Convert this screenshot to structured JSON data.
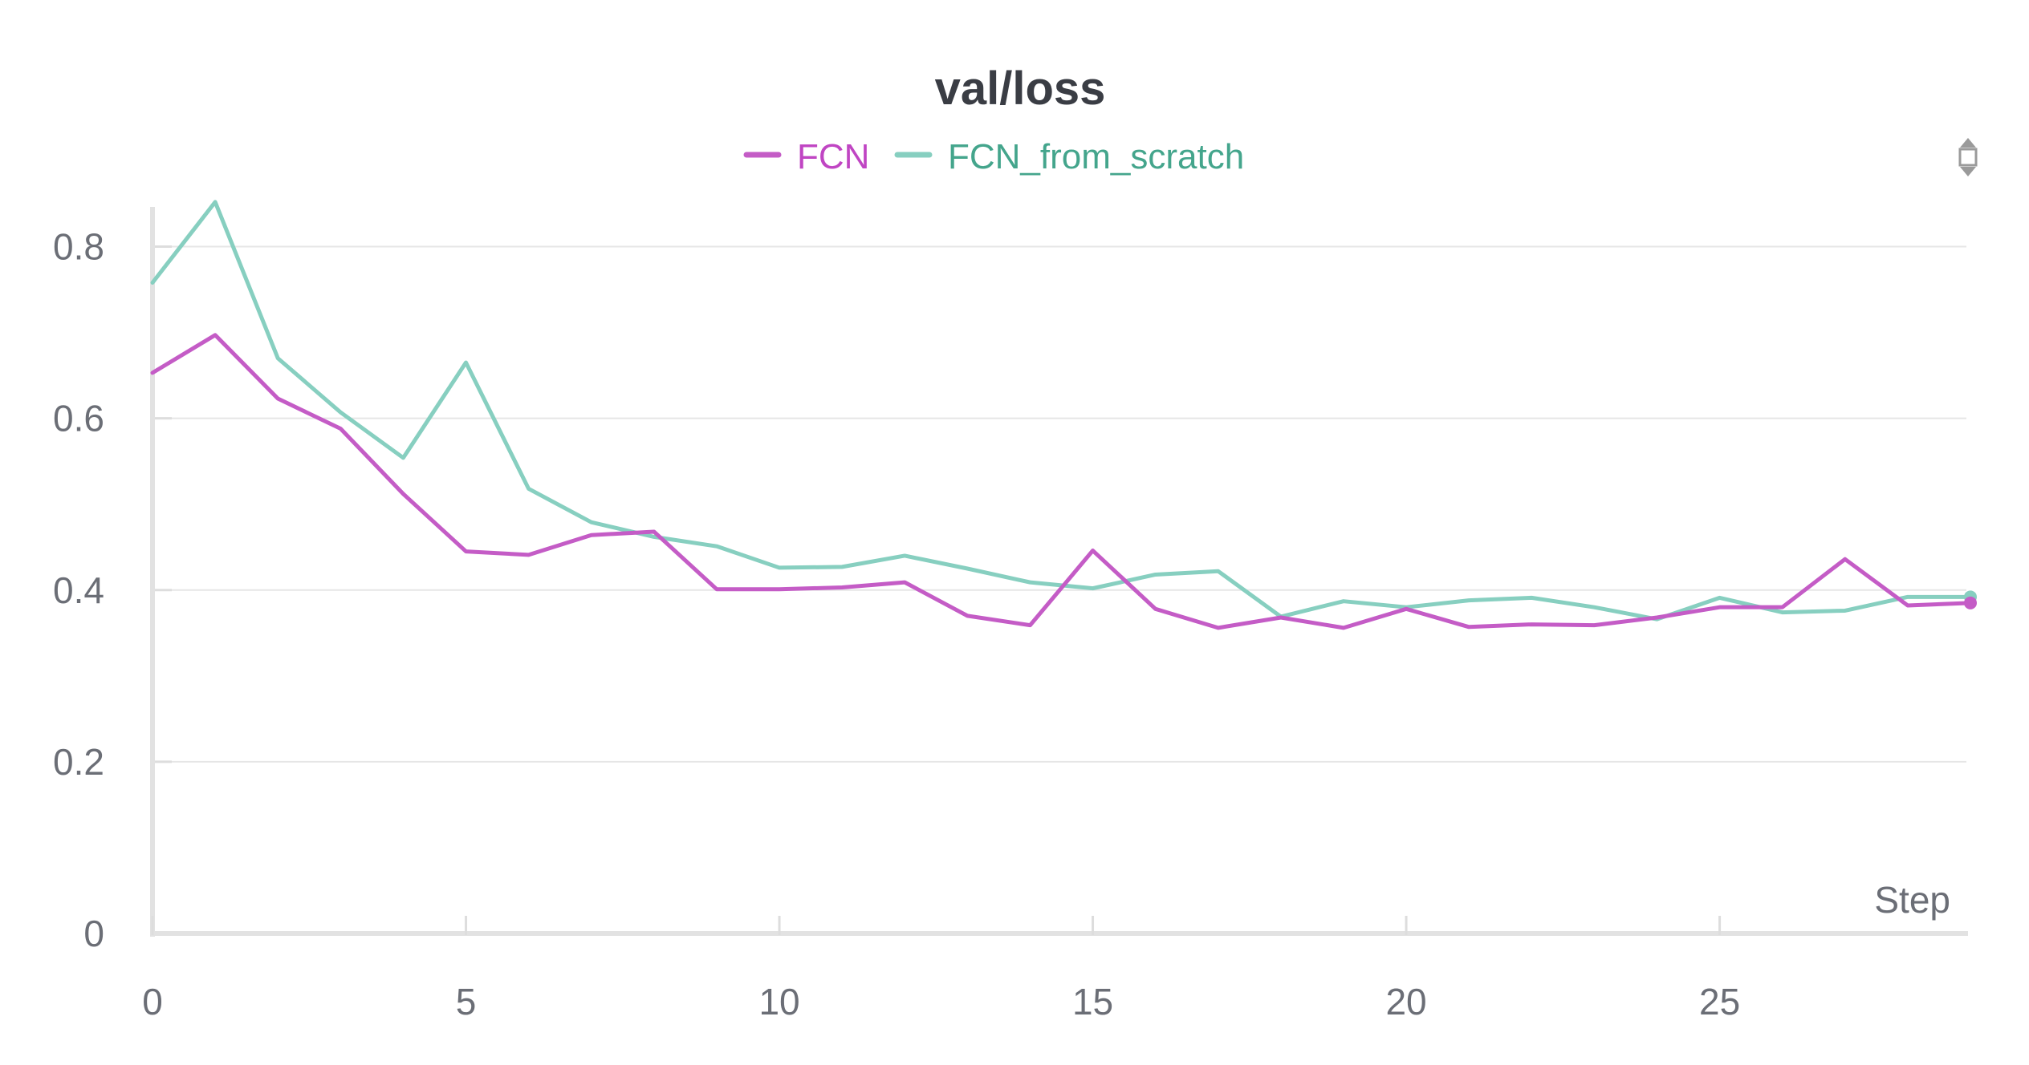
{
  "chart_data": {
    "type": "line",
    "title": "val/loss",
    "xlabel": "Step",
    "ylabel": "",
    "xlim": [
      0,
      29
    ],
    "ylim": [
      0,
      0.85
    ],
    "x_ticks": [
      0,
      5,
      10,
      15,
      20,
      25
    ],
    "x_tick_labels": [
      "0",
      "5",
      "10",
      "15",
      "20",
      "25"
    ],
    "y_ticks": [
      0,
      0.2,
      0.4,
      0.6,
      0.8
    ],
    "y_tick_labels": [
      "0",
      "0.2",
      "0.4",
      "0.6",
      "0.8"
    ],
    "grid": "horizontal",
    "legend_position": "top-center",
    "x": [
      0,
      1,
      2,
      3,
      4,
      5,
      6,
      7,
      8,
      9,
      10,
      11,
      12,
      13,
      14,
      15,
      16,
      17,
      18,
      19,
      20,
      21,
      22,
      23,
      24,
      25,
      26,
      27,
      28,
      29
    ],
    "series": [
      {
        "name": "FCN",
        "color": "#c45cc6",
        "values": [
          0.653,
          0.697,
          0.623,
          0.588,
          0.512,
          0.445,
          0.441,
          0.464,
          0.468,
          0.401,
          0.401,
          0.403,
          0.409,
          0.37,
          0.359,
          0.446,
          0.378,
          0.356,
          0.368,
          0.356,
          0.378,
          0.357,
          0.36,
          0.359,
          0.368,
          0.38,
          0.38,
          0.436,
          0.382,
          0.385
        ]
      },
      {
        "name": "FCN_from_scratch",
        "color": "#87cfc0",
        "values": [
          0.758,
          0.852,
          0.67,
          0.607,
          0.554,
          0.665,
          0.518,
          0.479,
          0.462,
          0.451,
          0.426,
          0.427,
          0.44,
          0.425,
          0.409,
          0.402,
          0.418,
          0.422,
          0.369,
          0.387,
          0.38,
          0.388,
          0.391,
          0.38,
          0.366,
          0.391,
          0.374,
          0.376,
          0.392,
          0.392
        ]
      }
    ],
    "legend_text_colors": [
      "#c045c3",
      "#44a58c"
    ]
  }
}
